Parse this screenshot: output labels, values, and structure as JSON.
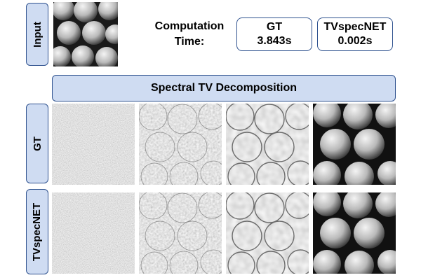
{
  "labels": {
    "input": "Input",
    "gt": "GT",
    "tvspecnet": "TVspecNET"
  },
  "computation": {
    "line1": "Computation",
    "line2": "Time:"
  },
  "timings": [
    {
      "method": "GT",
      "time": "3.843s"
    },
    {
      "method": "TVspecNET",
      "time": "0.002s"
    }
  ],
  "banner": {
    "title": "Spectral TV Decomposition"
  },
  "rows": [
    {
      "name": "GT",
      "tiles": [
        "fine-scale-band",
        "mid-scale-band",
        "coarse-scale-band",
        "residual-structure"
      ]
    },
    {
      "name": "TVspecNET",
      "tiles": [
        "fine-scale-band",
        "mid-scale-band",
        "coarse-scale-band",
        "residual-structure"
      ]
    }
  ],
  "colors": {
    "accent_fill": "#cfdcf2",
    "accent_border": "#2f528f"
  }
}
